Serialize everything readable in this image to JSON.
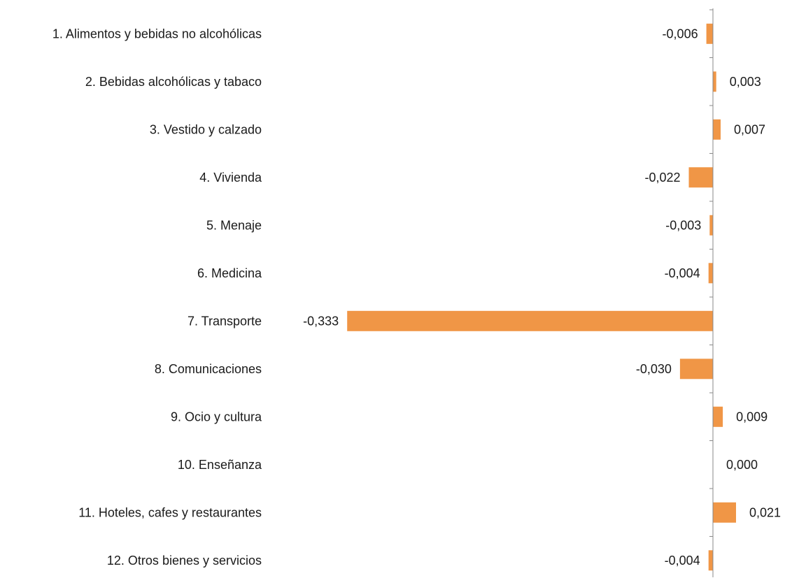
{
  "chart_data": {
    "type": "bar",
    "orientation": "horizontal",
    "title": "",
    "xlabel": "",
    "ylabel": "",
    "categories": [
      "1. Alimentos y bebidas no alcohólicas",
      "2. Bebidas alcohólicas y tabaco",
      "3. Vestido y calzado",
      "4. Vivienda",
      "5. Menaje",
      "6. Medicina",
      "7. Transporte",
      "8. Comunicaciones",
      "9. Ocio y cultura",
      "10. Enseñanza",
      "11. Hoteles, cafes y restaurantes",
      "12. Otros bienes y servicios"
    ],
    "values": [
      -0.006,
      0.003,
      0.007,
      -0.022,
      -0.003,
      -0.004,
      -0.333,
      -0.03,
      0.009,
      0.0,
      0.021,
      -0.004
    ],
    "value_labels": [
      "-0,006",
      "0,003",
      "0,007",
      "-0,022",
      "-0,003",
      "-0,004",
      "-0,333",
      "-0,030",
      "0,009",
      "0,000",
      "0,021",
      "-0,004"
    ],
    "grid": false,
    "legend": "none",
    "bar_color": "#F09646",
    "axis_color": "#888888"
  }
}
